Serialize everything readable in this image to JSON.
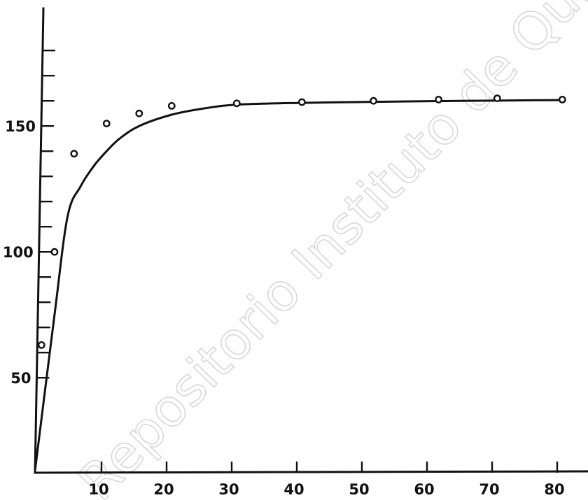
{
  "watermark": "Repositorio Instituto de Química UNAM",
  "chart_data": {
    "type": "scatter",
    "title": "",
    "xlabel": "",
    "ylabel": "",
    "xlim": [
      0,
      85
    ],
    "ylim": [
      10,
      185
    ],
    "x_ticks_labeled": [
      10,
      20,
      30,
      40,
      50,
      60,
      70,
      80
    ],
    "x_ticks_unlabeled": [],
    "y_ticks_labeled": [
      50,
      100,
      150
    ],
    "y_ticks_minor": [
      60,
      70,
      80,
      90,
      110,
      120,
      130,
      140,
      160,
      170,
      180
    ],
    "grid": false,
    "series": [
      {
        "style": "points-with-fitted-curve",
        "x": [
          1,
          3,
          6,
          11,
          16,
          21,
          31,
          41,
          52,
          62,
          71,
          81
        ],
        "y": [
          63,
          100,
          139,
          151,
          155,
          158,
          159,
          159.5,
          160,
          160.5,
          161,
          160.5
        ]
      }
    ],
    "curve": {
      "x": [
        0,
        3,
        5,
        7,
        9,
        11,
        13,
        16,
        21,
        26,
        31,
        41,
        52,
        62,
        71,
        81
      ],
      "y": [
        13,
        75,
        114,
        126,
        134,
        140,
        145,
        150,
        154.5,
        157,
        158.5,
        159.2,
        159.6,
        159.9,
        160.1,
        160.3
      ]
    }
  }
}
